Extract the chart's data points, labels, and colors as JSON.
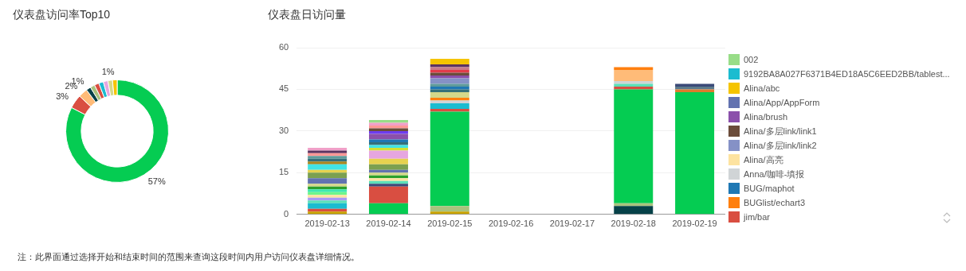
{
  "chart_data": [
    {
      "type": "donut",
      "title": "仪表盘访问率Top10",
      "categories": [
        null,
        null,
        null,
        null,
        null,
        null,
        null,
        null,
        null,
        null
      ],
      "values": [
        57,
        3,
        2,
        1,
        1,
        1,
        1,
        1,
        1,
        1
      ],
      "colors": [
        "#05cc52",
        "#d94e41",
        "#ffbb78",
        "#064148",
        "#a9c27e",
        "#d94e41",
        "#1bbcd0",
        "#e6a6e0",
        "#d4d88a",
        "#f5c400"
      ],
      "value_labels": [
        "57%",
        "3%",
        "2%",
        "1%",
        null,
        null,
        null,
        null,
        null,
        "1%"
      ],
      "annotations": [
        "注：此界面通过选择开始和结束时间的范围来查询这段时间内用户访问仪表盘详细情况。"
      ]
    },
    {
      "type": "bar",
      "title": "仪表盘日访问量",
      "stacked": true,
      "grid": "y",
      "legend": "right",
      "ylim": [
        0,
        60
      ],
      "yticks": [
        0,
        15,
        30,
        45,
        60
      ],
      "categories": [
        "2019-02-13",
        "2019-02-14",
        "2019-02-15",
        "2019-02-16",
        "2019-02-17",
        "2019-02-18",
        "2019-02-19"
      ],
      "series": [
        {
          "color": "#c8a200",
          "values": [
            1,
            null,
            1,
            null,
            null,
            null,
            null
          ]
        },
        {
          "color": "#064148",
          "values": [
            null,
            null,
            null,
            null,
            null,
            3,
            null
          ]
        },
        {
          "color": "#a9c27e",
          "values": [
            null,
            null,
            2,
            null,
            null,
            1,
            null
          ]
        },
        {
          "color": "#05cc52",
          "values": [
            null,
            4,
            34,
            null,
            null,
            41,
            44
          ]
        },
        {
          "name": "jim/bar",
          "color": "#d94e41",
          "values": [
            1,
            6,
            1,
            null,
            null,
            1,
            null
          ]
        },
        {
          "name": "9192BA8A027F6371B4ED18A5C6EED2BB/tablest...",
          "color": "#1bbcd0",
          "values": [
            2,
            null,
            2,
            null,
            null,
            null,
            null
          ]
        },
        {
          "color": "#e07b2c",
          "values": [
            null,
            null,
            null,
            null,
            null,
            null,
            1
          ]
        },
        {
          "color": "#5b7a8c",
          "values": [
            null,
            null,
            null,
            null,
            null,
            null,
            1
          ]
        },
        {
          "color": "#3b4a78",
          "values": [
            null,
            1,
            null,
            null,
            null,
            null,
            1
          ]
        },
        {
          "color": "#5ce0b8",
          "values": [
            1,
            1,
            null,
            null,
            null,
            1,
            null
          ]
        },
        {
          "color": "#a99af5",
          "values": [
            1,
            null,
            null,
            null,
            null,
            null,
            null
          ]
        },
        {
          "name": "Alina/高亮",
          "color": "#fde3a0",
          "values": [
            1,
            1,
            null,
            null,
            null,
            null,
            null
          ]
        },
        {
          "name": "Anna/咖啡-填报",
          "color": "#d0d4d6",
          "values": [
            null,
            null,
            1,
            null,
            null,
            1,
            null
          ]
        },
        {
          "color": "#ffbb78",
          "values": [
            null,
            null,
            null,
            null,
            null,
            4,
            null
          ]
        },
        {
          "name": "BUGlist/echart3",
          "color": "#ff7f0e",
          "values": [
            null,
            null,
            1,
            null,
            null,
            1,
            null
          ]
        },
        {
          "color": "#6ef58a",
          "values": [
            1,
            null,
            null,
            null,
            null,
            null,
            null
          ]
        },
        {
          "color": "#3ee8b0",
          "values": [
            1,
            null,
            null,
            null,
            null,
            null,
            null
          ]
        },
        {
          "color": "#2ca02c",
          "values": [
            1,
            1,
            null,
            null,
            null,
            null,
            null
          ]
        },
        {
          "color": "#d4d88a",
          "values": [
            1,
            1,
            2,
            null,
            null,
            null,
            null
          ]
        },
        {
          "name": "Alina/App/AppForm",
          "color": "#6272b0",
          "values": [
            2,
            1,
            null,
            null,
            null,
            null,
            null
          ]
        },
        {
          "color": "#7ba050",
          "values": [
            2,
            2,
            null,
            null,
            null,
            null,
            null
          ]
        },
        {
          "color": "#e6d24f",
          "values": [
            1,
            2,
            null,
            null,
            null,
            null,
            null
          ]
        },
        {
          "color": "#e6a6e0",
          "values": [
            null,
            3,
            null,
            null,
            null,
            null,
            null
          ]
        },
        {
          "color": "#d4e032",
          "values": [
            null,
            1,
            null,
            null,
            null,
            null,
            null
          ]
        },
        {
          "color": "#42e4e4",
          "values": [
            2,
            1,
            null,
            null,
            null,
            null,
            null
          ]
        },
        {
          "color": "#a8851e",
          "values": [
            1,
            null,
            null,
            null,
            null,
            null,
            null
          ]
        },
        {
          "color": "#35707a",
          "values": [
            1,
            1,
            1,
            null,
            null,
            null,
            null
          ]
        },
        {
          "name": "BUG/maphot",
          "color": "#1f78b4",
          "values": [
            null,
            1,
            1,
            null,
            null,
            null,
            null
          ]
        },
        {
          "color": "#5f9b9b",
          "values": [
            1,
            null,
            1,
            null,
            null,
            null,
            null
          ]
        },
        {
          "name": "Alina/多层link/link2",
          "color": "#8591c6",
          "values": [
            null,
            null,
            2,
            null,
            null,
            null,
            null
          ]
        },
        {
          "name": "Alina/brush",
          "color": "#8b50ab",
          "values": [
            null,
            2,
            1,
            null,
            null,
            null,
            null
          ]
        },
        {
          "color": "#6d3cf0",
          "values": [
            null,
            1,
            null,
            null,
            null,
            null,
            null
          ]
        },
        {
          "name": "Alina/多层link/link1",
          "color": "#6b4c3a",
          "values": [
            null,
            1,
            1,
            null,
            null,
            null,
            null
          ]
        },
        {
          "color": "#ff9896",
          "values": [
            1,
            1,
            null,
            null,
            null,
            null,
            null
          ]
        },
        {
          "color": "#e33b4a",
          "values": [
            null,
            null,
            1,
            null,
            null,
            null,
            null
          ]
        },
        {
          "color": "#c87a8a",
          "values": [
            null,
            null,
            1,
            null,
            null,
            null,
            null
          ]
        },
        {
          "color": "#5c3360",
          "values": [
            1,
            null,
            1,
            null,
            null,
            null,
            null
          ]
        },
        {
          "color": "#f0a0c8",
          "values": [
            1,
            1,
            null,
            null,
            null,
            null,
            null
          ]
        },
        {
          "name": "Alina/abc",
          "color": "#f5c400",
          "values": [
            null,
            null,
            2,
            null,
            null,
            null,
            null
          ]
        },
        {
          "name": "002",
          "color": "#98dd88",
          "values": [
            null,
            1,
            null,
            null,
            null,
            null,
            null
          ]
        }
      ]
    }
  ]
}
